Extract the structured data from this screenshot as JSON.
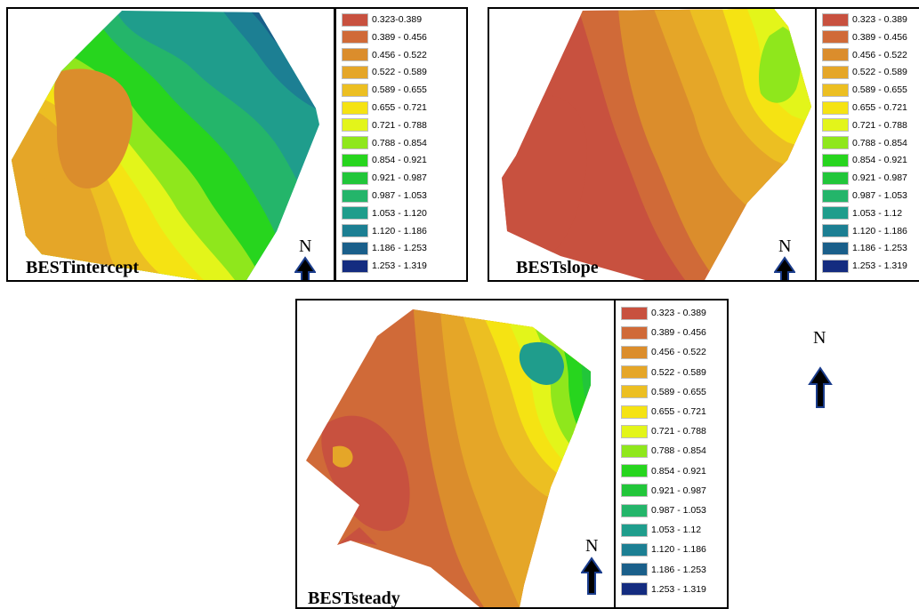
{
  "colors": [
    "#c8513f",
    "#d06a38",
    "#db8d2c",
    "#e5a628",
    "#ecbf22",
    "#f5e313",
    "#e3f51a",
    "#8fe71c",
    "#27d51e",
    "#22c63a",
    "#24b56a",
    "#1f9d8c",
    "#1c7f93",
    "#1a5f8a",
    "#142c80"
  ],
  "maps": [
    {
      "title": "BESTintercept",
      "north": "N",
      "legend": [
        "0.323-0.389",
        "0.389 - 0.456",
        "0.456 - 0.522",
        "0.522 - 0.589",
        "0.589 - 0.655",
        "0.655 - 0.721",
        "0.721 - 0.788",
        "0.788 - 0.854",
        "0.854 - 0.921",
        "0.921 - 0.987",
        "0.987 - 1.053",
        "1.053 - 1.120",
        "1.120 - 1.186",
        "1.186 - 1.253",
        "1.253 - 1.319"
      ]
    },
    {
      "title": "BESTslope",
      "north": "N",
      "legend": [
        "0.323 - 0.389",
        "0.389 - 0.456",
        "0.456 - 0.522",
        "0.522 - 0.589",
        "0.589 - 0.655",
        "0.655 - 0.721",
        "0.721 - 0.788",
        "0.788 - 0.854",
        "0.854 - 0.921",
        "0.921 - 0.987",
        "0.987 - 1.053",
        "1.053 - 1.12",
        "1.120 - 1.186",
        "1.186 - 1.253",
        "1.253 - 1.319"
      ]
    },
    {
      "title": "BESTsteady",
      "north": "N",
      "legend": [
        "0.323 - 0.389",
        "0.389 - 0.456",
        "0.456 - 0.522",
        "0.522 - 0.589",
        "0.589 - 0.655",
        "0.655 - 0.721",
        "0.721 - 0.788",
        "0.788 - 0.854",
        "0.854 - 0.921",
        "0.921 - 0.987",
        "0.987 - 1.053",
        "1.053 - 1.12",
        "1.120 - 1.186",
        "1.186 - 1.253",
        "1.253 - 1.319"
      ]
    }
  ],
  "standalone_north": "N"
}
